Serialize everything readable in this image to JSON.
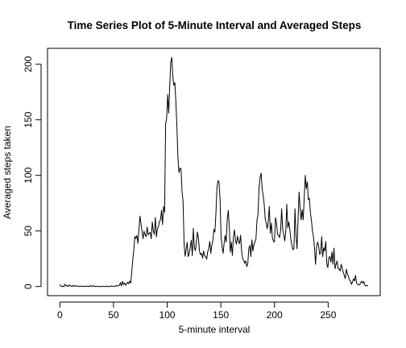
{
  "chart_data": {
    "type": "line",
    "title": "Time Series Plot of 5-Minute Interval and Averaged Steps",
    "xlabel": "5-minute interval",
    "ylabel": "Averaged steps taken",
    "xlim": [
      -11.5,
      298.5
    ],
    "ylim": [
      -8.2,
      214.3
    ],
    "xticks": [
      0,
      50,
      100,
      150,
      200,
      250
    ],
    "yticks": [
      0,
      50,
      100,
      150,
      200
    ],
    "grid": false,
    "series": [
      {
        "values": [
          1.7,
          0.3,
          0.1,
          0.2,
          0.1,
          2.1,
          0.5,
          0.9,
          0,
          1.5,
          0.8,
          0.2,
          0,
          1.1,
          0.2,
          0.5,
          0.7,
          0.3,
          0.4,
          0,
          0,
          0.5,
          0.1,
          0.1,
          0.1,
          0.3,
          0.4,
          0.1,
          0.2,
          0.1,
          1,
          0.2,
          0,
          0.9,
          0,
          0,
          0.3,
          0.1,
          0,
          0,
          0.1,
          0,
          0.2,
          0.2,
          0,
          0,
          0.3,
          0.1,
          0,
          0,
          0.6,
          0.3,
          0.2,
          0.2,
          0.2,
          1,
          0.4,
          0.6,
          1.2,
          3.6,
          0.4,
          4.6,
          1.8,
          3.1,
          1.2,
          2.5,
          3.8,
          2.5,
          4.8,
          3.1,
          12.9,
          23.8,
          32.7,
          45,
          43.2,
          45.9,
          38.9,
          51.5,
          63.4,
          56.4,
          50.2,
          43,
          49.7,
          46.6,
          44.9,
          53.5,
          46.5,
          48,
          48.7,
          43,
          58,
          50,
          47,
          62.1,
          44.7,
          52,
          54,
          58.4,
          60,
          68.6,
          55.8,
          72,
          66.6,
          146.4,
          151.1,
          172.7,
          156.1,
          180.6,
          201.9,
          206.2,
          189.3,
          181,
          183.4,
          166.2,
          143.6,
          115.7,
          102.4,
          106.6,
          105.8,
          85.4,
          76.4,
          37.9,
          27.3,
          33.5,
          39.7,
          27,
          30,
          35.5,
          41.8,
          27.7,
          52.4,
          34.8,
          32.2,
          40,
          49,
          43,
          31.7,
          28.6,
          29.9,
          25.7,
          31.9,
          27.7,
          26.7,
          24.8,
          31.4,
          33.9,
          40.6,
          29.9,
          37.4,
          41.1,
          51.4,
          49,
          66.1,
          89,
          95.3,
          94,
          78.6,
          45,
          36,
          30,
          39,
          46,
          40,
          60,
          68.5,
          54,
          31,
          40,
          28,
          44,
          51,
          42,
          38.2,
          45.4,
          40.4,
          38.7,
          46.2,
          32,
          25,
          24,
          21,
          23,
          18,
          20,
          34,
          37,
          27,
          42,
          32,
          38,
          40,
          43,
          59.8,
          65,
          89,
          98,
          102,
          88,
          82,
          74,
          61,
          57,
          52,
          58.9,
          72,
          48,
          57,
          44,
          41,
          40,
          62,
          57,
          47,
          46.2,
          44,
          50,
          70,
          52,
          47.1,
          41,
          49,
          74,
          53,
          58,
          51,
          42,
          37,
          33,
          34.6,
          70,
          46,
          34,
          60.8,
          85,
          70,
          60,
          69,
          60,
          80,
          100,
          88,
          94.2,
          78.1,
          79.5,
          66.6,
          59.7,
          50,
          45,
          35,
          20,
          35,
          40,
          37,
          29,
          30,
          45,
          26.8,
          34.9,
          32,
          40.5,
          20,
          17,
          26,
          27,
          22,
          31.1,
          20,
          34.5,
          16,
          20,
          23,
          16,
          16,
          14,
          20,
          16.4,
          12.9,
          10.1,
          7,
          15.5,
          11.7,
          9.2,
          6,
          5,
          2,
          4,
          7,
          5,
          10,
          3,
          2,
          1.6,
          1.5,
          3.5,
          4.9,
          3,
          4.6,
          1,
          1,
          0.5,
          1.1
        ]
      }
    ]
  }
}
